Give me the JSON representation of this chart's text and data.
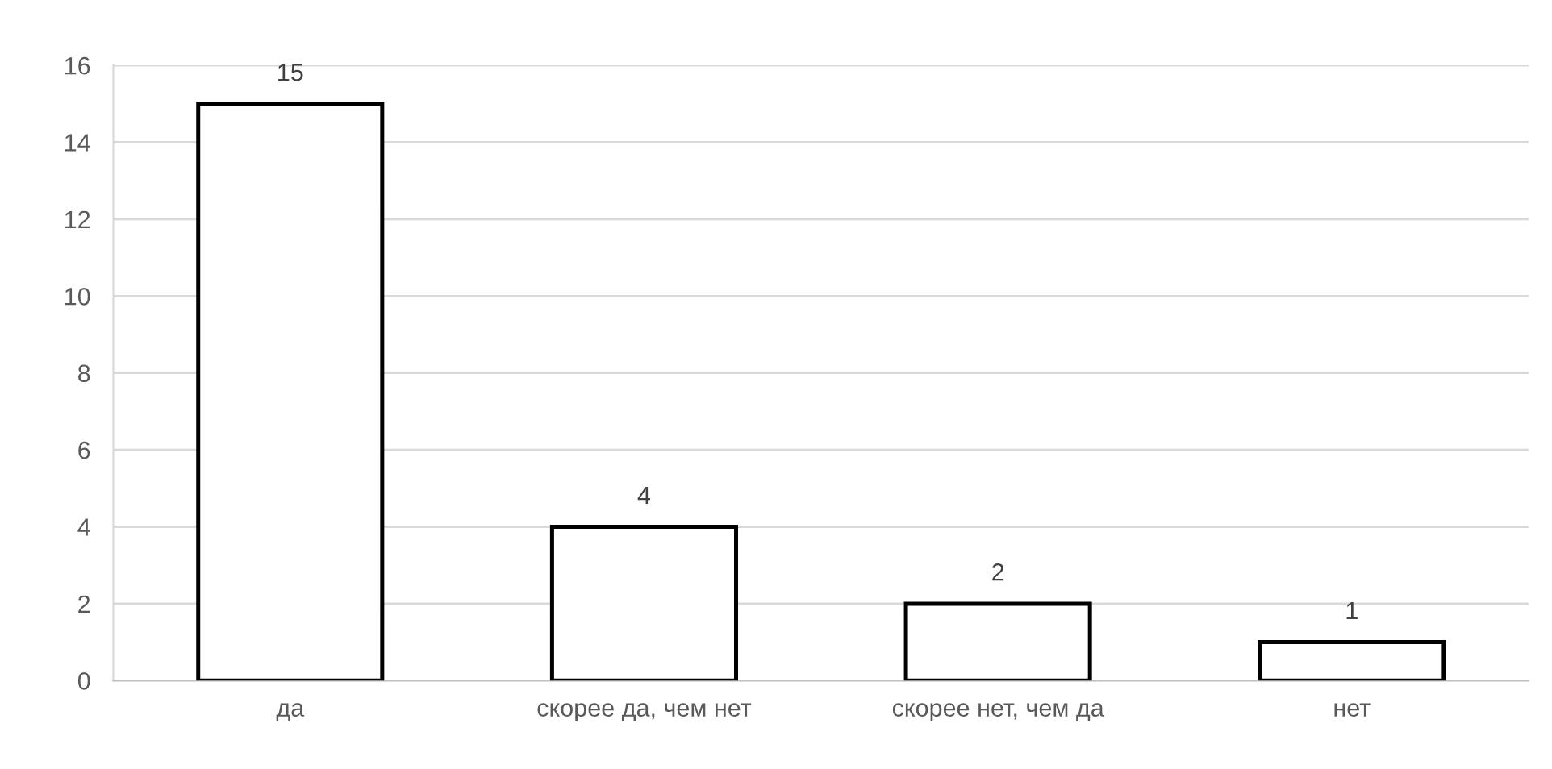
{
  "chart_data": {
    "type": "bar",
    "categories": [
      "да",
      "скорее да, чем нет",
      "скорее нет, чем да",
      "нет"
    ],
    "series": [
      {
        "color": "#ffffff",
        "values": [
          15,
          4,
          2,
          1
        ]
      }
    ],
    "ylim": [
      0,
      16
    ],
    "yticks": [
      0,
      2,
      4,
      6,
      8,
      10,
      12,
      14,
      16
    ],
    "grid": "y",
    "data_labels": true
  }
}
